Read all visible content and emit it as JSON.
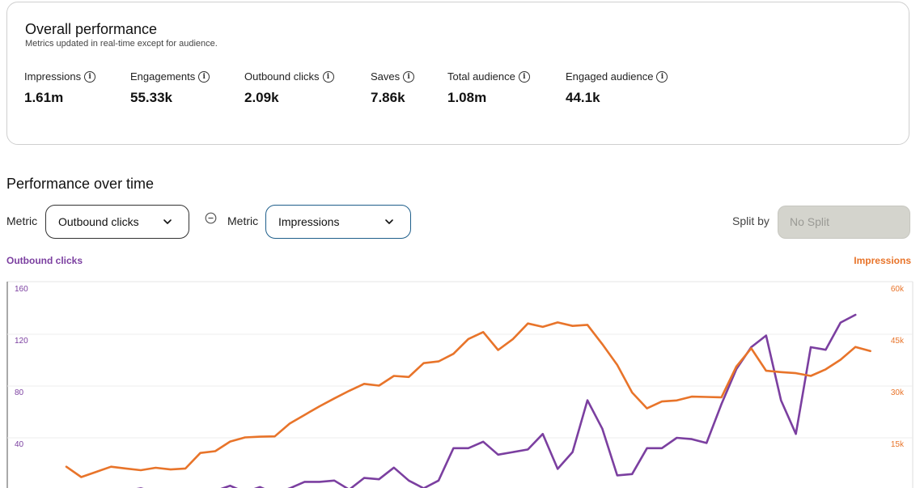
{
  "overview": {
    "title": "Overall performance",
    "subtitle": "Metrics updated in real-time except for audience.",
    "info_icon_glyph": "i",
    "metrics": [
      {
        "label": "Impressions",
        "value": "1.61m",
        "icon": "info-icon"
      },
      {
        "label": "Engagements",
        "value": "55.33k",
        "icon": "info-icon"
      },
      {
        "label": "Outbound clicks",
        "value": "2.09k",
        "icon": "info-icon"
      },
      {
        "label": "Saves",
        "value": "7.86k",
        "icon": "info-icon"
      },
      {
        "label": "Total audience",
        "value": "1.08m",
        "icon": "info-icon"
      },
      {
        "label": "Engaged audience",
        "value": "44.1k",
        "icon": "info-icon"
      }
    ]
  },
  "over_time": {
    "title": "Performance over time",
    "metric_label_1": "Metric",
    "metric_value_1": "Outbound clicks",
    "metric_label_2": "Metric",
    "metric_value_2": "Impressions",
    "split_label": "Split by",
    "split_value": "No Split"
  },
  "colors": {
    "outbound": "#7b3fa0",
    "impressions": "#e8742a",
    "focus_border": "#1f5f8b"
  },
  "chart_data": {
    "type": "line",
    "x": [
      1,
      2,
      3,
      4,
      5,
      6,
      7,
      8,
      9,
      10,
      11,
      12,
      13,
      14,
      15,
      16,
      17,
      18,
      19,
      20,
      21,
      22,
      23,
      24,
      25,
      26,
      27,
      28,
      29,
      30,
      31,
      32,
      33,
      34,
      35,
      36,
      37,
      38,
      39,
      40,
      41,
      42,
      43,
      44,
      45,
      46,
      47,
      48,
      49,
      50,
      51,
      52,
      53,
      54,
      55,
      56
    ],
    "y_left_label": "Outbound clicks",
    "y_right_label": "Impressions",
    "y_left_ticks": [
      "160",
      "120",
      "80",
      "40"
    ],
    "y_right_ticks": [
      "60k",
      "45k",
      "30k",
      "15k"
    ],
    "ylim_left": [
      0,
      160
    ],
    "ylim_right": [
      0,
      60000
    ],
    "series": [
      {
        "name": "Outbound clicks",
        "axis": "left",
        "values": [
          2,
          1,
          2,
          1,
          4,
          6,
          3,
          1,
          1,
          4,
          4,
          8,
          3,
          7,
          2,
          6,
          11,
          11,
          12,
          5,
          14,
          13,
          22,
          12,
          6,
          12,
          37,
          37,
          42,
          32,
          34,
          36,
          48,
          21,
          34,
          74,
          52,
          16,
          17,
          37,
          37,
          45,
          44,
          41,
          71,
          98,
          115,
          124,
          74,
          48,
          115,
          113,
          134,
          140,
          null,
          null
        ]
      },
      {
        "name": "Impressions",
        "axis": "right",
        "values": [
          8500,
          5500,
          7000,
          8500,
          8000,
          7500,
          8200,
          7700,
          8000,
          12500,
          13000,
          15800,
          17000,
          17200,
          17300,
          21000,
          23500,
          26000,
          28300,
          30500,
          32500,
          32000,
          34800,
          34500,
          38500,
          39000,
          41200,
          45500,
          47500,
          42300,
          45500,
          50000,
          49000,
          50300,
          49300,
          49600,
          44000,
          38000,
          30000,
          25400,
          27400,
          27700,
          28800,
          28700,
          28600,
          37500,
          42800,
          36300,
          35900,
          35600,
          34800,
          36700,
          39500,
          43200,
          42000,
          null
        ]
      }
    ]
  }
}
